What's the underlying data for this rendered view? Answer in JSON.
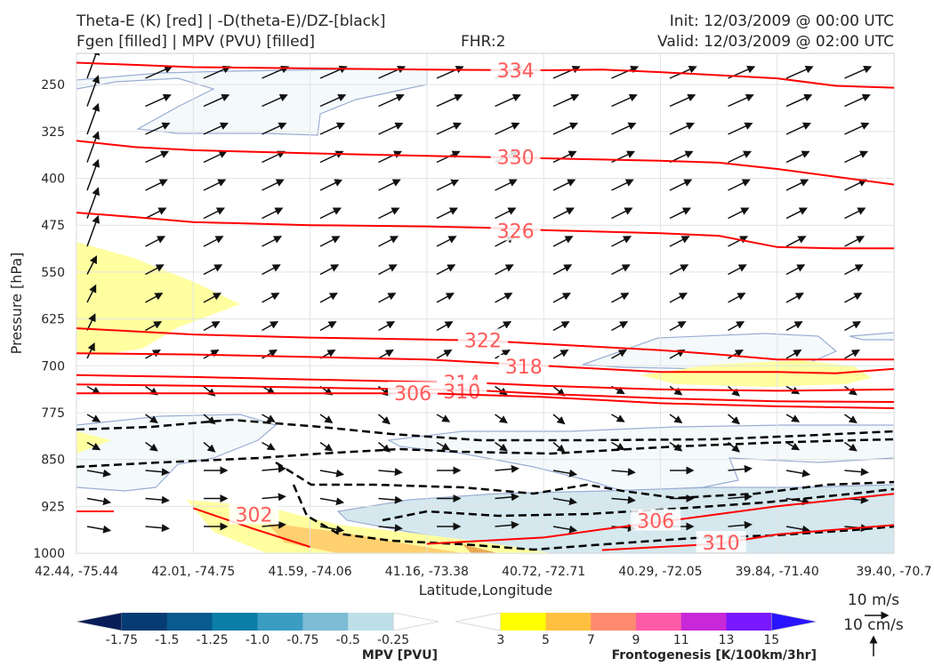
{
  "header": {
    "title_line1": "Theta-E (K) [red] | -D(theta-E)/DZ-[black]",
    "title_line2": "Fgen [filled] | MPV (PVU) [filled]",
    "fhr": "FHR:2",
    "init": "Init: 12/03/2009 @ 00:00 UTC",
    "valid": "Valid: 12/03/2009 @ 02:00 UTC"
  },
  "chart_data": {
    "type": "cross-section",
    "xlabel": "Latitude,Longitude",
    "ylabel": "Pressure [hPa]",
    "x_ticks": [
      "42.44, -75.44",
      "42.01, -74.75",
      "41.59, -74.06",
      "41.16, -73.38",
      "40.72, -72.71",
      "40.29, -72.05",
      "39.84, -71.40",
      "39.40, -70.7"
    ],
    "x_range": [
      0,
      7
    ],
    "y_ticks": [
      250,
      325,
      400,
      475,
      550,
      625,
      700,
      775,
      850,
      925,
      1000
    ],
    "y_range": [
      200,
      1000
    ],
    "grid": true,
    "theta_e_color": "#ff0000",
    "dtheta_dz_color": "#000000",
    "theta_e_contours": [
      {
        "level": "334",
        "points": [
          [
            0,
            215
          ],
          [
            1,
            222
          ],
          [
            2,
            224
          ],
          [
            3,
            226
          ],
          [
            4,
            227
          ],
          [
            4.5,
            226
          ],
          [
            5,
            230
          ],
          [
            6,
            240
          ],
          [
            6.5,
            252
          ],
          [
            7,
            255
          ]
        ],
        "label_at": [
          3.76,
          227
        ]
      },
      {
        "level": "330",
        "points": [
          [
            0,
            340
          ],
          [
            0.5,
            350
          ],
          [
            1,
            355
          ],
          [
            2,
            360
          ],
          [
            3,
            364
          ],
          [
            4,
            368
          ],
          [
            5,
            372
          ],
          [
            5.5,
            375
          ],
          [
            6,
            385
          ],
          [
            7,
            410
          ]
        ],
        "label_at": [
          3.76,
          366
        ]
      },
      {
        "level": "326",
        "points": [
          [
            0,
            455
          ],
          [
            0.5,
            462
          ],
          [
            1,
            470
          ],
          [
            2,
            475
          ],
          [
            3,
            477
          ],
          [
            3.5,
            479
          ],
          [
            4,
            483
          ],
          [
            5,
            488
          ],
          [
            5.5,
            492
          ],
          [
            6,
            510
          ],
          [
            6.5,
            512
          ],
          [
            7,
            512
          ]
        ],
        "label_at": [
          3.76,
          484
        ]
      },
      {
        "level": "322",
        "points": [
          [
            0,
            640
          ],
          [
            0.5,
            645
          ],
          [
            1,
            650
          ],
          [
            2,
            655
          ],
          [
            3,
            658
          ],
          [
            3.5,
            660
          ],
          [
            4,
            665
          ],
          [
            5,
            675
          ],
          [
            5.5,
            682
          ],
          [
            6,
            690
          ],
          [
            7,
            690
          ]
        ],
        "label_at": [
          3.48,
          659
        ]
      },
      {
        "level": "318",
        "points": [
          [
            0,
            680
          ],
          [
            1,
            682
          ],
          [
            2,
            686
          ],
          [
            3,
            690
          ],
          [
            3.5,
            695
          ],
          [
            4,
            700
          ],
          [
            5,
            710
          ],
          [
            6,
            710
          ],
          [
            6.5,
            712
          ],
          [
            7,
            705
          ]
        ],
        "label_at": [
          3.83,
          701
        ]
      },
      {
        "level": "314",
        "points": [
          [
            0,
            715
          ],
          [
            1,
            718
          ],
          [
            2,
            722
          ],
          [
            3,
            726
          ],
          [
            3.5,
            728
          ],
          [
            4,
            732
          ],
          [
            5,
            738
          ],
          [
            6,
            740
          ],
          [
            7,
            738
          ]
        ],
        "label_at": [
          3.3,
          727
        ]
      },
      {
        "level": "310",
        "points": [
          [
            0,
            730
          ],
          [
            1,
            732
          ],
          [
            2,
            735
          ],
          [
            3,
            738
          ],
          [
            3.5,
            740
          ],
          [
            4,
            745
          ],
          [
            5,
            752
          ],
          [
            6,
            757
          ],
          [
            7,
            758
          ]
        ],
        "label_at": [
          3.3,
          741
        ]
      },
      {
        "level": "306",
        "points": [
          [
            0,
            744
          ],
          [
            1,
            744
          ],
          [
            2,
            744
          ],
          [
            3,
            744
          ],
          [
            4,
            750
          ],
          [
            5,
            760
          ],
          [
            6,
            765
          ],
          [
            7,
            768
          ]
        ],
        "label_at": [
          2.88,
          744
        ]
      },
      {
        "level": "306",
        "points": [
          [
            3,
            985
          ],
          [
            4,
            975
          ],
          [
            4.5,
            962
          ],
          [
            5,
            950
          ],
          [
            6,
            925
          ],
          [
            7,
            905
          ]
        ],
        "label_at": [
          4.96,
          948
        ]
      },
      {
        "level": "310",
        "points": [
          [
            4.5,
            995
          ],
          [
            5,
            990
          ],
          [
            5.5,
            985
          ],
          [
            6,
            970
          ],
          [
            7,
            955
          ]
        ],
        "label_at": [
          5.52,
          983
        ]
      },
      {
        "level": "302",
        "points": [
          [
            1.0,
            928
          ],
          [
            1.5,
            960
          ],
          [
            2.0,
            990
          ]
        ],
        "label_at": [
          1.52,
          938
        ]
      }
    ]
  },
  "colorbars": {
    "mpv": {
      "ticks": [
        "-1.75",
        "-1.5",
        "-1.25",
        "-1.0",
        "-0.75",
        "-0.5",
        "-0.25"
      ],
      "colors": [
        "#081d58",
        "#063c73",
        "#075b8e",
        "#0b7ea8",
        "#3b9dc2",
        "#7cbcd5",
        "#bde0e8",
        "#ffffff"
      ],
      "label": "MPV [PVU]"
    },
    "fgen": {
      "ticks": [
        "3",
        "5",
        "7",
        "9",
        "11",
        "13",
        "15"
      ],
      "colors": [
        "#ffffff",
        "#ffff00",
        "#ffc040",
        "#ff8a70",
        "#ff5aa8",
        "#c828d8",
        "#7a18ff",
        "#2a14ff"
      ],
      "label": "Frontogenesis [K/100km/3hr]"
    }
  },
  "quiver_key": {
    "u_label": "10 m/s",
    "w_label": "10 cm/s"
  }
}
